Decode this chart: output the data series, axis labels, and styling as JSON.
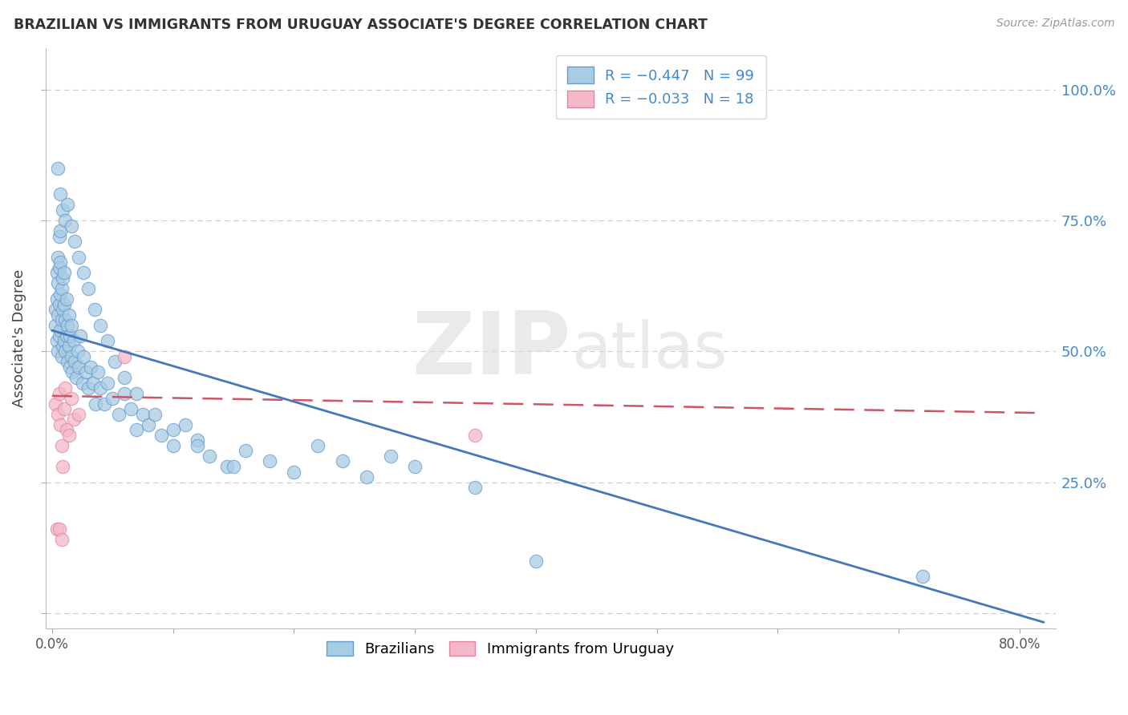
{
  "title": "BRAZILIAN VS IMMIGRANTS FROM URUGUAY ASSOCIATE'S DEGREE CORRELATION CHART",
  "source": "Source: ZipAtlas.com",
  "ylabel": "Associate's Degree",
  "xlim": [
    -0.005,
    0.83
  ],
  "ylim": [
    -0.03,
    1.08
  ],
  "watermark": "ZIPatlas",
  "blue_color": "#a8cce4",
  "pink_color": "#f4b8c8",
  "blue_edge": "#6699cc",
  "pink_edge": "#dd8899",
  "trend_blue": "#4477bb",
  "trend_pink": "#cc5566",
  "grid_color": "#cccccc",
  "right_label_color": "#4488cc",
  "title_color": "#333333",
  "blue_intercept": 0.54,
  "blue_slope": -0.68,
  "pink_intercept": 0.415,
  "pink_slope": -0.04,
  "brazilians_x": [
    0.003,
    0.003,
    0.004,
    0.004,
    0.004,
    0.005,
    0.005,
    0.005,
    0.005,
    0.006,
    0.006,
    0.006,
    0.006,
    0.007,
    0.007,
    0.007,
    0.007,
    0.008,
    0.008,
    0.008,
    0.009,
    0.009,
    0.009,
    0.01,
    0.01,
    0.01,
    0.011,
    0.011,
    0.012,
    0.012,
    0.013,
    0.013,
    0.014,
    0.014,
    0.015,
    0.015,
    0.016,
    0.016,
    0.017,
    0.018,
    0.019,
    0.02,
    0.021,
    0.022,
    0.023,
    0.025,
    0.026,
    0.028,
    0.03,
    0.032,
    0.034,
    0.036,
    0.038,
    0.04,
    0.043,
    0.046,
    0.05,
    0.055,
    0.06,
    0.065,
    0.07,
    0.075,
    0.08,
    0.09,
    0.1,
    0.11,
    0.12,
    0.13,
    0.145,
    0.16,
    0.18,
    0.2,
    0.22,
    0.24,
    0.26,
    0.28,
    0.3,
    0.35,
    0.4,
    0.72,
    0.005,
    0.007,
    0.009,
    0.011,
    0.013,
    0.016,
    0.019,
    0.022,
    0.026,
    0.03,
    0.035,
    0.04,
    0.046,
    0.052,
    0.06,
    0.07,
    0.085,
    0.1,
    0.12,
    0.15
  ],
  "brazilians_y": [
    0.55,
    0.58,
    0.52,
    0.6,
    0.65,
    0.5,
    0.57,
    0.63,
    0.68,
    0.53,
    0.59,
    0.66,
    0.72,
    0.54,
    0.61,
    0.67,
    0.73,
    0.49,
    0.56,
    0.62,
    0.51,
    0.58,
    0.64,
    0.52,
    0.59,
    0.65,
    0.5,
    0.56,
    0.53,
    0.6,
    0.48,
    0.55,
    0.51,
    0.57,
    0.47,
    0.53,
    0.49,
    0.55,
    0.46,
    0.52,
    0.48,
    0.45,
    0.5,
    0.47,
    0.53,
    0.44,
    0.49,
    0.46,
    0.43,
    0.47,
    0.44,
    0.4,
    0.46,
    0.43,
    0.4,
    0.44,
    0.41,
    0.38,
    0.42,
    0.39,
    0.35,
    0.38,
    0.36,
    0.34,
    0.32,
    0.36,
    0.33,
    0.3,
    0.28,
    0.31,
    0.29,
    0.27,
    0.32,
    0.29,
    0.26,
    0.3,
    0.28,
    0.24,
    0.1,
    0.07,
    0.85,
    0.8,
    0.77,
    0.75,
    0.78,
    0.74,
    0.71,
    0.68,
    0.65,
    0.62,
    0.58,
    0.55,
    0.52,
    0.48,
    0.45,
    0.42,
    0.38,
    0.35,
    0.32,
    0.28
  ],
  "uruguay_x": [
    0.003,
    0.004,
    0.005,
    0.006,
    0.007,
    0.008,
    0.009,
    0.01,
    0.011,
    0.012,
    0.014,
    0.016,
    0.018,
    0.022,
    0.06,
    0.35,
    0.006,
    0.008
  ],
  "uruguay_y": [
    0.4,
    0.16,
    0.38,
    0.42,
    0.36,
    0.32,
    0.28,
    0.39,
    0.43,
    0.35,
    0.34,
    0.41,
    0.37,
    0.38,
    0.49,
    0.34,
    0.16,
    0.14
  ]
}
